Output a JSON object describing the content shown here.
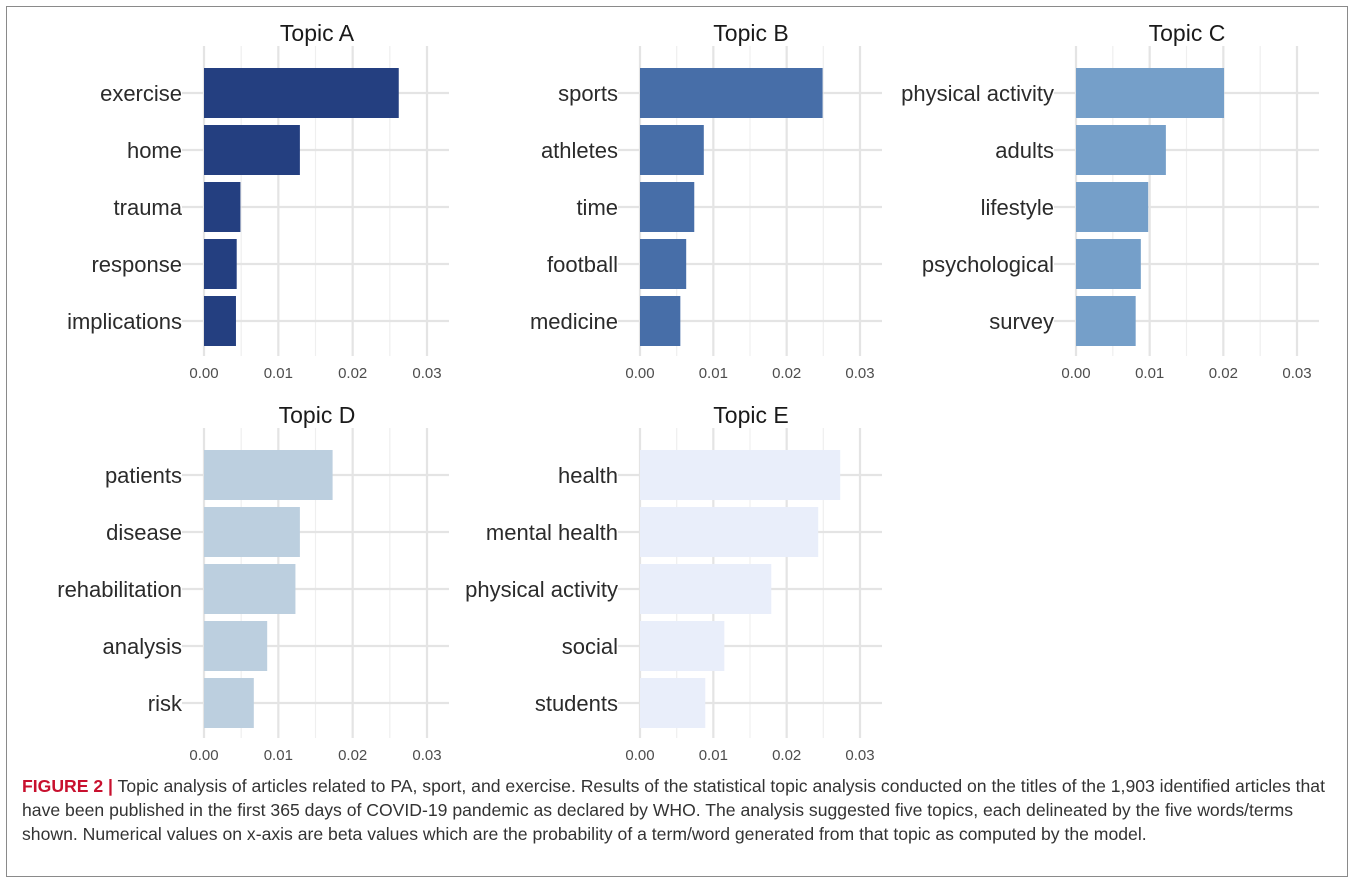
{
  "chart_data": [
    {
      "type": "bar",
      "orientation": "horizontal",
      "title": "Topic A",
      "color": "#243f80",
      "categories": [
        "exercise",
        "home",
        "trauma",
        "response",
        "implications"
      ],
      "values": [
        0.0262,
        0.0129,
        0.0049,
        0.0044,
        0.0043
      ],
      "xlim": [
        0,
        0.03
      ],
      "xticks": [
        "0.00",
        "0.01",
        "0.02",
        "0.03"
      ],
      "grid": true
    },
    {
      "type": "bar",
      "orientation": "horizontal",
      "title": "Topic B",
      "color": "#476ea8",
      "categories": [
        "sports",
        "athletes",
        "time",
        "football",
        "medicine"
      ],
      "values": [
        0.0249,
        0.0087,
        0.0074,
        0.0063,
        0.0055
      ],
      "xlim": [
        0,
        0.03
      ],
      "xticks": [
        "0.00",
        "0.01",
        "0.02",
        "0.03"
      ],
      "grid": true
    },
    {
      "type": "bar",
      "orientation": "horizontal",
      "title": "Topic C",
      "color": "#759fc9",
      "categories": [
        "physical activity",
        "adults",
        "lifestyle",
        "psychological",
        "survey"
      ],
      "values": [
        0.0201,
        0.0122,
        0.0098,
        0.0088,
        0.0081
      ],
      "xlim": [
        0,
        0.03
      ],
      "xticks": [
        "0.00",
        "0.01",
        "0.02",
        "0.03"
      ],
      "grid": true
    },
    {
      "type": "bar",
      "orientation": "horizontal",
      "title": "Topic D",
      "color": "#bccfdf",
      "categories": [
        "patients",
        "disease",
        "rehabilitation",
        "analysis",
        "risk"
      ],
      "values": [
        0.0173,
        0.0129,
        0.0123,
        0.0085,
        0.0067
      ],
      "xlim": [
        0,
        0.03
      ],
      "xticks": [
        "0.00",
        "0.01",
        "0.02",
        "0.03"
      ],
      "grid": true
    },
    {
      "type": "bar",
      "orientation": "horizontal",
      "title": "Topic E",
      "color": "#e9eefa",
      "categories": [
        "health",
        "mental health",
        "physical activity",
        "social",
        "students"
      ],
      "values": [
        0.0273,
        0.0243,
        0.0179,
        0.0115,
        0.0089
      ],
      "xlim": [
        0,
        0.03
      ],
      "xticks": [
        "0.00",
        "0.01",
        "0.02",
        "0.03"
      ],
      "grid": true
    }
  ],
  "caption": {
    "label": "FIGURE 2 |",
    "text": " Topic analysis of articles related to PA, sport, and exercise. Results of the statistical topic analysis conducted on the titles of the 1,903 identified articles that have been published in the first 365 days of COVID-19 pandemic as declared by WHO. The analysis suggested five topics, each delineated by the five words/terms shown. Numerical values on x-axis are beta values which are the probability of a term/word generated from that topic as computed by the model."
  }
}
